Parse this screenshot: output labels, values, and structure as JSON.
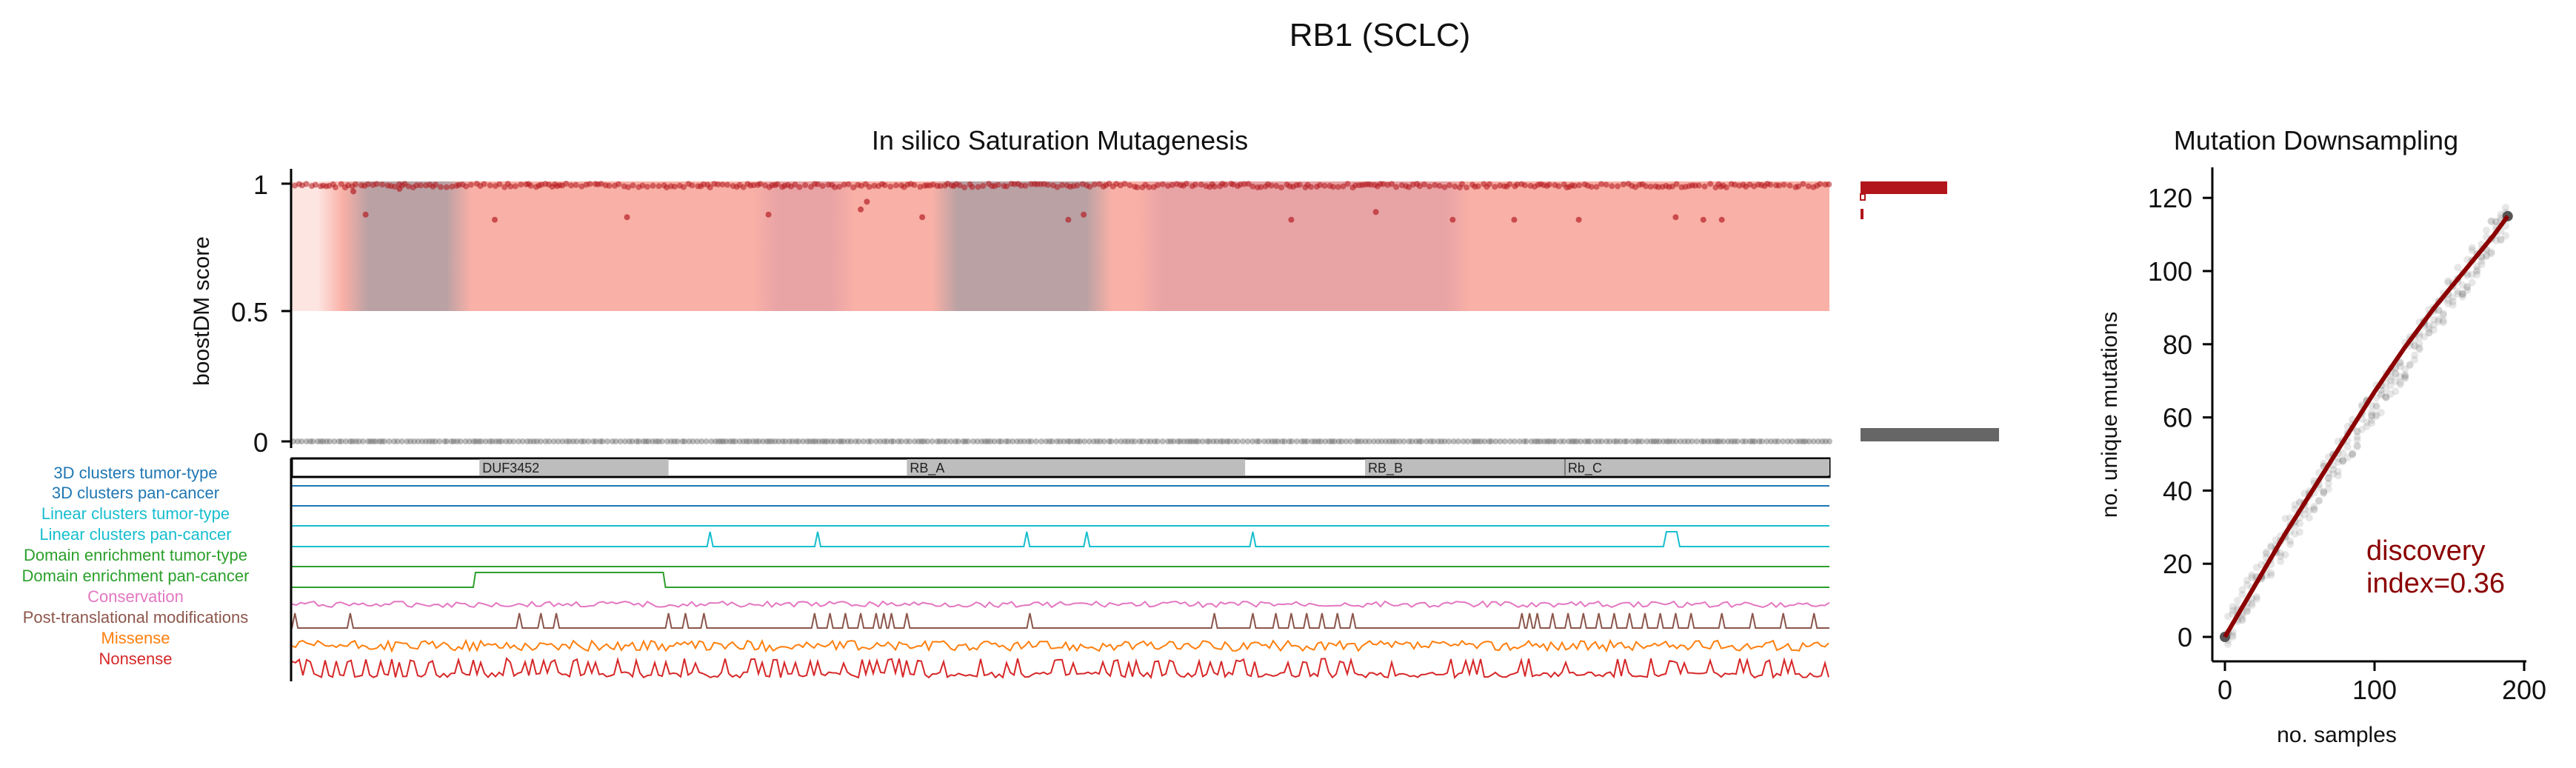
{
  "figure": {
    "title": "RB1 (SCLC)",
    "left_panel_title": "In silico Saturation Mutagenesis",
    "right_panel_title": "Mutation Downsampling"
  },
  "chart_data": [
    {
      "type": "scatter",
      "title": "In silico Saturation Mutagenesis",
      "ylabel": "boostDM score",
      "yticks": [
        "1",
        "0.5",
        "0"
      ],
      "ylim": [
        0,
        1.05
      ],
      "xlim": [
        0,
        928
      ],
      "series": [
        {
          "values": [
            1,
            1,
            1,
            1,
            1,
            1,
            1,
            1,
            1,
            1,
            1,
            1,
            1,
            1,
            1,
            1,
            1,
            1,
            1,
            1
          ]
        },
        {
          "values": [
            0.99,
            0.98,
            0.97,
            0.96,
            0.95,
            0.94,
            0.99,
            0.98
          ]
        },
        {
          "values": [
            0.88,
            0.87,
            0.86,
            0.85,
            0.88,
            0.87,
            0.86,
            0.89,
            0.86,
            0.86,
            0.86,
            0.86,
            0.86,
            0.86,
            0.86,
            0.86,
            0.87
          ]
        },
        {
          "values": [
            0,
            0,
            0,
            0,
            0,
            0,
            0,
            0,
            0,
            0,
            0,
            0,
            0,
            0,
            0,
            0,
            0,
            0,
            0,
            0
          ]
        }
      ],
      "domains": [
        {
          "label": "DUF3452",
          "start": 0.122,
          "end": 0.245
        },
        {
          "label": "RB_A",
          "start": 0.4,
          "end": 0.62
        },
        {
          "label": "RB_B",
          "start": 0.698,
          "end": 0.828
        },
        {
          "label": "Rb_C",
          "start": 0.828,
          "end": 1.0
        }
      ],
      "tracks": [
        {
          "label": "3D clusters tumor-type",
          "color": "#1f77b4",
          "peaks": []
        },
        {
          "label": "3D clusters pan-cancer",
          "color": "#1f77b4",
          "peaks": []
        },
        {
          "label": "Linear clusters tumor-type",
          "color": "#17becf",
          "peaks": []
        },
        {
          "label": "Linear clusters pan-cancer",
          "color": "#17becf",
          "peaks": [
            0.272,
            0.342,
            0.478,
            0.517,
            0.625,
            0.894
          ]
        },
        {
          "label": "Domain enrichment tumor-type",
          "color": "#2ca02c",
          "peaks": []
        },
        {
          "label": "Domain enrichment pan-cancer",
          "color": "#2ca02c",
          "peaks": [
            [
              0.118,
              0.243
            ]
          ]
        },
        {
          "label": "Conservation",
          "color": "#e377c2",
          "peaks": []
        },
        {
          "label": "Post-translational modifications",
          "color": "#8c564b",
          "peaks": [
            0.002,
            0.038,
            0.148,
            0.162,
            0.172,
            0.245,
            0.256,
            0.268,
            0.34,
            0.35,
            0.36,
            0.37,
            0.38,
            0.385,
            0.39,
            0.4,
            0.48,
            0.6,
            0.625,
            0.64,
            0.65,
            0.66,
            0.67,
            0.68,
            0.69,
            0.8,
            0.805,
            0.81,
            0.82,
            0.83,
            0.84,
            0.85,
            0.86,
            0.87,
            0.88,
            0.89,
            0.9,
            0.91,
            0.93,
            0.95,
            0.97,
            0.99
          ]
        },
        {
          "label": "Missense",
          "color": "#ff7f0e",
          "peaks": []
        },
        {
          "label": "Nonsense",
          "color": "#d62728",
          "peaks": []
        }
      ]
    },
    {
      "type": "scatter",
      "title": "Mutation Downsampling",
      "xlabel": "no. samples",
      "ylabel": "no. unique mutations",
      "xlim": [
        -5,
        200
      ],
      "ylim": [
        -5,
        122
      ],
      "xticks": [
        0,
        100,
        200
      ],
      "yticks": [
        0,
        20,
        40,
        60,
        80,
        100,
        120
      ],
      "fit": {
        "x": [
          0,
          20,
          40,
          60,
          80,
          100,
          120,
          140,
          160,
          180,
          189
        ],
        "y": [
          0,
          14,
          28,
          41,
          54,
          67,
          79,
          90,
          100,
          110,
          115
        ]
      },
      "annotation": "discovery\nindex=0.36",
      "annotation_lines": [
        "discovery",
        "index=0.36"
      ]
    }
  ],
  "colors": {
    "driver_red": "#b2151b",
    "passenger_gray": "#666666",
    "band_light": "#f9b0a6",
    "band_dark": "#b9a1a4",
    "fit_line": "#8b0000",
    "annotation": "#8b0000"
  }
}
